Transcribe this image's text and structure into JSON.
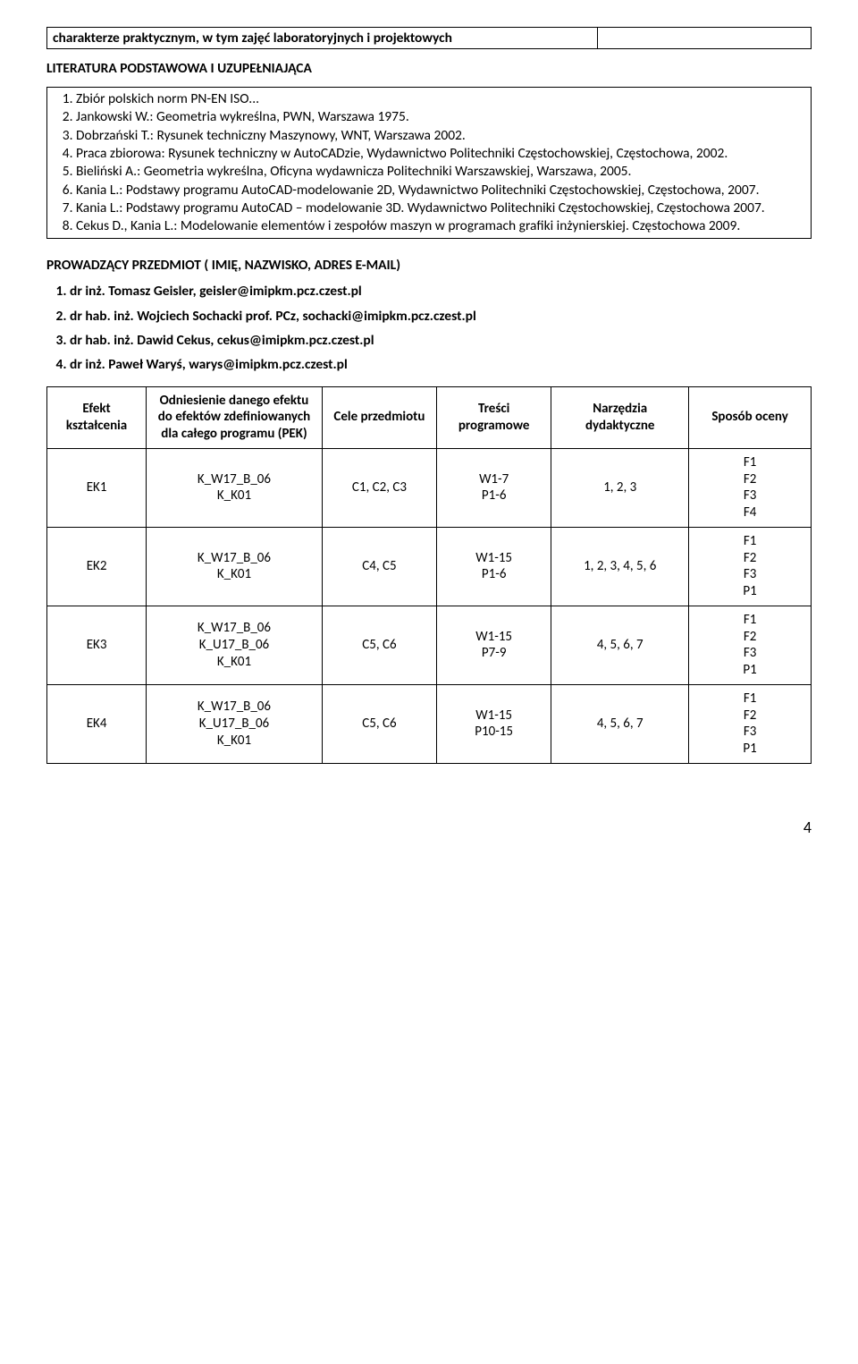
{
  "top_box": {
    "left": "charakterze praktycznym, w tym zajęć laboratoryjnych i projektowych",
    "right": ""
  },
  "lit_title": "LITERATURA PODSTAWOWA I UZUPEŁNIAJĄCA",
  "literature": [
    "Zbiór polskich norm PN-EN ISO...",
    "Jankowski W.: Geometria wykreślna, PWN, Warszawa 1975.",
    "Dobrzański T.: Rysunek techniczny Maszynowy, WNT, Warszawa 2002.",
    "Praca zbiorowa: Rysunek techniczny w AutoCADzie, Wydawnictwo Politechniki Częstochowskiej, Częstochowa, 2002.",
    "Bieliński A.: Geometria wykreślna, Oficyna wydawnicza Politechniki Warszawskiej, Warszawa, 2005.",
    "Kania L.: Podstawy programu AutoCAD-modelowanie 2D, Wydawnictwo Politechniki Częstochowskiej, Częstochowa, 2007.",
    "Kania L.: Podstawy programu AutoCAD – modelowanie 3D. Wydawnictwo Politechniki Częstochowskiej, Częstochowa 2007.",
    "Cekus D., Kania L.: Modelowanie elementów i zespołów maszyn w programach grafiki inżynierskiej. Częstochowa 2009."
  ],
  "prow_title": "PROWADZĄCY PRZEDMIOT ( IMIĘ, NAZWISKO, ADRES E-MAIL)",
  "instructors": [
    "dr inż. Tomasz Geisler, geisler@imipkm.pcz.czest.pl",
    "dr hab. inż. Wojciech Sochacki prof. PCz, sochacki@imipkm.pcz.czest.pl",
    "dr hab. inż. Dawid Cekus, cekus@imipkm.pcz.czest.pl",
    "dr inż. Paweł Waryś, warys@imipkm.pcz.czest.pl"
  ],
  "matrix": {
    "headers": {
      "c1": "Efekt kształcenia",
      "c2": "Odniesienie danego efektu do efektów zdefiniowanych dla całego programu (PEK)",
      "c3": "Cele przedmiotu",
      "c4": "Treści programowe",
      "c5": "Narzędzia dydaktyczne",
      "c6": "Sposób oceny"
    },
    "col_widths": [
      "13%",
      "23%",
      "15%",
      "15%",
      "18%",
      "16%"
    ],
    "rows": [
      {
        "ek": "EK1",
        "pek": "K_W17_B_06\nK_K01",
        "cele": "C1, C2, C3",
        "tresci": "W1-7\nP1-6",
        "narz": "1, 2, 3",
        "ocena": "F1\nF2\nF3\nF4"
      },
      {
        "ek": "EK2",
        "pek": "K_W17_B_06\nK_K01",
        "cele": "C4, C5",
        "tresci": "W1-15\nP1-6",
        "narz": "1, 2, 3, 4, 5, 6",
        "ocena": "F1\nF2\nF3\nP1"
      },
      {
        "ek": "EK3",
        "pek": "K_W17_B_06\nK_U17_B_06\nK_K01",
        "cele": "C5, C6",
        "tresci": "W1-15\nP7-9",
        "narz": "4, 5, 6, 7",
        "ocena": "F1\nF2\nF3\nP1"
      },
      {
        "ek": "EK4",
        "pek": "K_W17_B_06\nK_U17_B_06\nK_K01",
        "cele": "C5, C6",
        "tresci": "W1-15\nP10-15",
        "narz": "4, 5, 6, 7",
        "ocena": "F1\nF2\nF3\nP1"
      }
    ]
  },
  "page_number": "4"
}
